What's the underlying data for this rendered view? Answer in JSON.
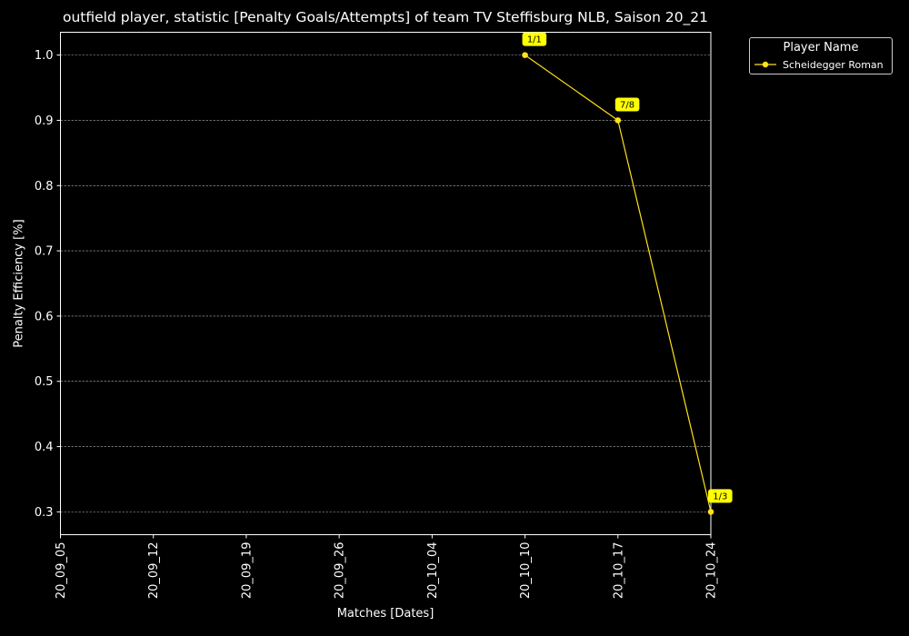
{
  "chart_data": {
    "type": "line",
    "title": "outfield player, statistic [Penalty Goals/Attempts] of team TV Steffisburg NLB, Saison 20_21",
    "xlabel": "Matches [Dates]",
    "ylabel": "Penalty Efficiency [%]",
    "x_ticks": [
      "20_09_05",
      "20_09_12",
      "20_09_19",
      "20_09_26",
      "20_10_04",
      "20_10_10",
      "20_10_17",
      "20_10_24"
    ],
    "y_ticks": [
      "0.3",
      "0.4",
      "0.5",
      "0.6",
      "0.7",
      "0.8",
      "0.9",
      "1.0"
    ],
    "ylim": [
      0.265,
      1.035
    ],
    "grid": "horizontal dashed",
    "legend": {
      "title": "Player Name",
      "placement": "outside top-right"
    },
    "series": [
      {
        "name": "Scheidegger Roman",
        "color": "#FFE119",
        "x": [
          "20_10_10",
          "20_10_17",
          "20_10_24"
        ],
        "y": [
          1.0,
          0.9,
          0.3
        ],
        "labels": [
          "1/1",
          "7/8",
          "1/3"
        ]
      }
    ],
    "background": "#000000",
    "label_box_color": "#FFFF00"
  }
}
